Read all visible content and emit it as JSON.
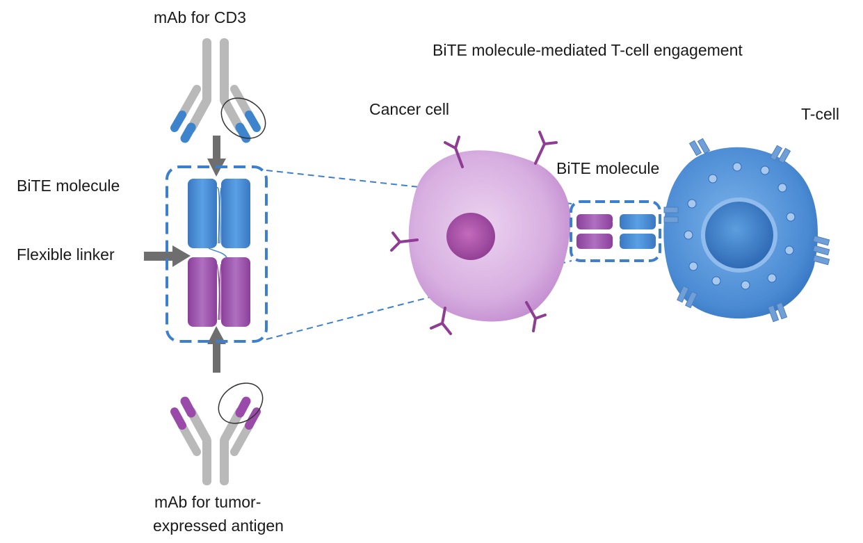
{
  "labels": {
    "mab_cd3": "mAb for CD3",
    "figure_title": "BiTE molecule-mediated T-cell engagement",
    "cancer_cell": "Cancer cell",
    "t_cell": "T-cell",
    "bite_molecule_left": "BiTE molecule",
    "bite_molecule_right": "BiTE molecule",
    "flexible_linker": "Flexible linker",
    "mab_tumor_line1": "mAb for tumor-",
    "mab_tumor_line2": "expressed antigen"
  },
  "colors": {
    "antibody_gray": "#b9b9b9",
    "cd3_blue": "#3e84cc",
    "antigen_purple": "#9a4aa8",
    "arrow_gray": "#6e6e6e",
    "dashed_blue": "#3d7fcf",
    "cancer_cell_fill": "#dbb6e3",
    "t_cell_fill": "#4f92d8"
  }
}
